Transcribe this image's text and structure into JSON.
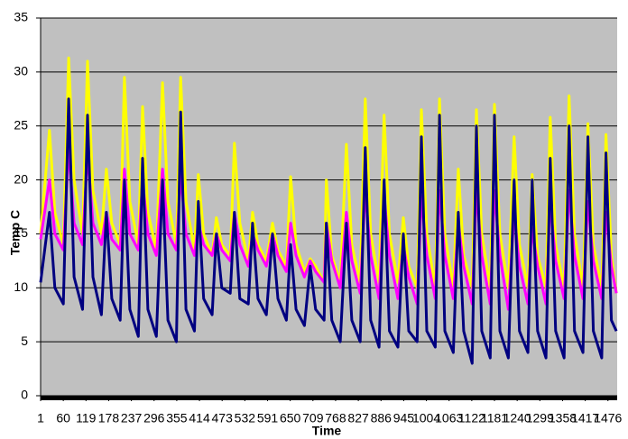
{
  "chart_data": {
    "type": "line",
    "x_label": "Time",
    "y_label": "Temp C",
    "x": [
      1,
      24,
      38,
      60,
      74,
      88,
      110,
      123,
      137,
      159,
      172,
      186,
      208,
      219,
      233,
      255,
      266,
      280,
      302,
      318,
      332,
      354,
      365,
      379,
      401,
      411,
      425,
      447,
      458,
      472,
      494,
      505,
      519,
      541,
      552,
      566,
      588,
      604,
      618,
      640,
      651,
      665,
      687,
      702,
      716,
      738,
      744,
      758,
      780,
      796,
      810,
      832,
      845,
      859,
      881,
      894,
      908,
      930,
      944,
      958,
      980,
      991,
      1005,
      1027,
      1038,
      1052,
      1074,
      1087,
      1101,
      1123,
      1134,
      1148,
      1170,
      1181,
      1195,
      1217,
      1232,
      1246,
      1268,
      1279,
      1293,
      1315,
      1326,
      1340,
      1362,
      1375,
      1389,
      1411,
      1424,
      1438,
      1460,
      1471,
      1485,
      1498
    ],
    "series": [
      {
        "color": "#ffff00",
        "values": [
          15,
          24.6,
          17,
          14,
          31.3,
          20,
          15,
          31,
          19,
          15,
          21,
          16,
          14,
          29.5,
          18,
          14,
          26.8,
          17,
          13.5,
          29,
          18,
          14,
          29.5,
          18,
          13.5,
          20.5,
          15,
          13,
          16.5,
          14,
          13,
          23.4,
          16,
          12.5,
          17,
          14,
          12.5,
          16,
          13.5,
          12,
          20.3,
          14,
          11.5,
          12.7,
          12,
          10.5,
          20,
          13,
          10.5,
          23.3,
          14,
          10.5,
          27.5,
          15,
          10.5,
          26,
          15,
          10.5,
          16.5,
          12,
          10,
          26.5,
          15,
          10,
          27.5,
          15,
          10,
          21,
          13,
          10,
          26.5,
          15,
          10,
          27,
          15,
          10,
          24,
          14,
          10,
          20.5,
          13,
          10,
          25.8,
          14,
          10,
          27.8,
          15,
          10,
          25.2,
          14,
          10,
          24.2,
          13,
          9.5
        ]
      },
      {
        "color": "#ff00ff",
        "values": [
          14.5,
          20,
          15,
          13.5,
          23,
          16,
          14,
          22.5,
          16,
          14,
          17,
          14.5,
          13.5,
          21,
          15,
          13.5,
          20,
          15,
          13,
          21,
          15,
          13.5,
          20.5,
          15,
          13,
          16,
          14,
          13,
          15,
          13.5,
          12.5,
          17,
          14,
          12,
          15,
          13.5,
          12,
          15,
          13,
          11.5,
          16,
          13,
          11,
          12.5,
          11.5,
          10.5,
          16,
          12.5,
          10,
          17,
          12.5,
          9.5,
          19,
          13,
          9,
          18.5,
          13,
          9,
          14,
          11,
          8.5,
          18.5,
          13,
          9,
          19,
          13,
          9,
          16,
          12,
          8.5,
          19,
          13,
          8.5,
          19,
          13,
          8,
          17,
          12,
          8.5,
          15.5,
          12,
          8.5,
          18,
          12.5,
          9,
          19,
          13,
          9,
          18,
          12.5,
          9,
          17,
          12,
          9.5
        ]
      },
      {
        "color": "#000080",
        "values": [
          10.5,
          17,
          10,
          8.5,
          27.5,
          11,
          8,
          26,
          11,
          7.5,
          17,
          9,
          7,
          20,
          8,
          5.5,
          22,
          8,
          5.5,
          20,
          7,
          5,
          26.3,
          8,
          6,
          18,
          9,
          7.5,
          15,
          10,
          9.5,
          17,
          9,
          8.5,
          16,
          9,
          7.5,
          15,
          9,
          7,
          14,
          8,
          6.5,
          12,
          8,
          7,
          16,
          7,
          5,
          16,
          7,
          5,
          23,
          7,
          4.5,
          20,
          6,
          4.5,
          15,
          6,
          5,
          24,
          6,
          4.5,
          26,
          6,
          4,
          17,
          6,
          3,
          25,
          6,
          3.5,
          26,
          6,
          3.5,
          20,
          6,
          4,
          20,
          6,
          3.5,
          22,
          6,
          3.5,
          25,
          6,
          4,
          24,
          6,
          3.5,
          22.5,
          7,
          6
        ]
      }
    ],
    "xlim": [
      1,
      1500
    ],
    "xticks": [
      1,
      60,
      119,
      178,
      237,
      296,
      355,
      414,
      473,
      532,
      591,
      650,
      709,
      768,
      827,
      886,
      945,
      1004,
      1063,
      1122,
      1181,
      1240,
      1299,
      1358,
      1417,
      1476
    ],
    "ylim": [
      0,
      35
    ],
    "yticks": [
      0,
      5,
      10,
      15,
      20,
      25,
      30,
      35
    ],
    "grid": true,
    "background": "#c0c0c0"
  }
}
